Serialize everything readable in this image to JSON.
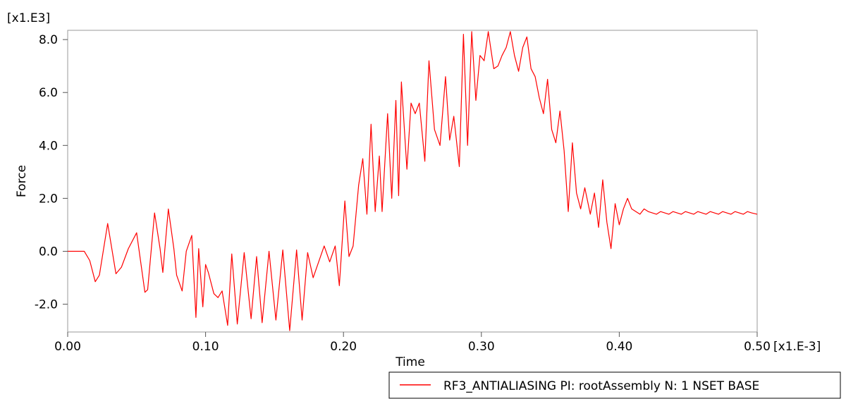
{
  "chart_data": {
    "type": "line",
    "xlabel": "Time",
    "ylabel": "Force",
    "x_multiplier": "[x1.E-3]",
    "y_multiplier": "[x1.E3]",
    "xlim": [
      0.0,
      0.5
    ],
    "ylim": [
      -3.05,
      8.35
    ],
    "x_ticks": [
      0.0,
      0.1,
      0.2,
      0.3,
      0.4,
      0.5
    ],
    "x_tick_labels": [
      "0.00",
      "0.10",
      "0.20",
      "0.30",
      "0.40",
      "0.50"
    ],
    "y_ticks": [
      -2.0,
      0.0,
      2.0,
      4.0,
      6.0,
      8.0
    ],
    "y_tick_labels": [
      "-2.0",
      "0.0",
      "2.0",
      "4.0",
      "6.0",
      "8.0"
    ],
    "grid": false,
    "legend_position": "bottom-right",
    "series": [
      {
        "name": "RF3_ANTIALIASING PI: rootAssembly N: 1 NSET BASE",
        "color": "#ff0000",
        "x": [
          0.0,
          0.012,
          0.016,
          0.02,
          0.023,
          0.029,
          0.035,
          0.039,
          0.044,
          0.05,
          0.056,
          0.058,
          0.063,
          0.067,
          0.069,
          0.073,
          0.077,
          0.079,
          0.083,
          0.086,
          0.09,
          0.093,
          0.095,
          0.098,
          0.1,
          0.102,
          0.106,
          0.109,
          0.112,
          0.116,
          0.119,
          0.123,
          0.128,
          0.133,
          0.137,
          0.141,
          0.146,
          0.151,
          0.156,
          0.161,
          0.166,
          0.17,
          0.174,
          0.178,
          0.182,
          0.186,
          0.19,
          0.194,
          0.197,
          0.201,
          0.204,
          0.207,
          0.211,
          0.214,
          0.217,
          0.22,
          0.223,
          0.226,
          0.228,
          0.232,
          0.235,
          0.238,
          0.24,
          0.242,
          0.246,
          0.249,
          0.252,
          0.255,
          0.259,
          0.262,
          0.266,
          0.27,
          0.274,
          0.277,
          0.28,
          0.284,
          0.287,
          0.29,
          0.293,
          0.296,
          0.299,
          0.302,
          0.305,
          0.309,
          0.312,
          0.315,
          0.318,
          0.321,
          0.324,
          0.327,
          0.33,
          0.333,
          0.336,
          0.339,
          0.342,
          0.345,
          0.348,
          0.351,
          0.354,
          0.357,
          0.36,
          0.363,
          0.366,
          0.369,
          0.372,
          0.375,
          0.379,
          0.382,
          0.385,
          0.388,
          0.391,
          0.394,
          0.397,
          0.4,
          0.403,
          0.406,
          0.409,
          0.412,
          0.415,
          0.418,
          0.421,
          0.424,
          0.427,
          0.43,
          0.433,
          0.436,
          0.439,
          0.442,
          0.445,
          0.448,
          0.451,
          0.454,
          0.457,
          0.46,
          0.463,
          0.466,
          0.469,
          0.472,
          0.475,
          0.478,
          0.481,
          0.484,
          0.487,
          0.49,
          0.493,
          0.496,
          0.5
        ],
        "y": [
          0.0,
          0.0,
          -0.35,
          -1.15,
          -0.9,
          1.05,
          -0.85,
          -0.6,
          0.1,
          0.7,
          -1.55,
          -1.45,
          1.45,
          0.1,
          -0.8,
          1.6,
          0.1,
          -0.9,
          -1.5,
          0.0,
          0.6,
          -2.5,
          0.1,
          -2.1,
          -0.5,
          -0.8,
          -1.6,
          -1.75,
          -1.5,
          -2.8,
          -0.1,
          -2.75,
          -0.05,
          -2.55,
          -0.2,
          -2.7,
          0.0,
          -2.6,
          0.05,
          -3.0,
          0.05,
          -2.6,
          -0.05,
          -1.0,
          -0.4,
          0.2,
          -0.4,
          0.2,
          -1.3,
          1.9,
          -0.2,
          0.2,
          2.5,
          3.5,
          1.4,
          4.8,
          1.5,
          3.6,
          1.5,
          5.2,
          2.0,
          5.7,
          2.1,
          6.4,
          3.1,
          5.6,
          5.2,
          5.6,
          3.4,
          7.2,
          4.6,
          4.0,
          6.6,
          4.2,
          5.1,
          3.2,
          8.2,
          4.0,
          8.3,
          5.7,
          7.4,
          7.2,
          8.3,
          6.9,
          7.0,
          7.4,
          7.7,
          8.3,
          7.4,
          6.8,
          7.7,
          8.1,
          6.9,
          6.6,
          5.8,
          5.2,
          6.5,
          4.6,
          4.1,
          5.3,
          3.8,
          1.5,
          4.1,
          2.2,
          1.6,
          2.4,
          1.4,
          2.2,
          0.9,
          2.7,
          1.1,
          0.1,
          1.8,
          1.0,
          1.6,
          2.0,
          1.6,
          1.5,
          1.4,
          1.6,
          1.5,
          1.45,
          1.4,
          1.5,
          1.45,
          1.4,
          1.5,
          1.45,
          1.4,
          1.5,
          1.45,
          1.4,
          1.5,
          1.45,
          1.4,
          1.5,
          1.45,
          1.4,
          1.5,
          1.45,
          1.4,
          1.5,
          1.45,
          1.4,
          1.5,
          1.45,
          1.4
        ]
      }
    ]
  }
}
